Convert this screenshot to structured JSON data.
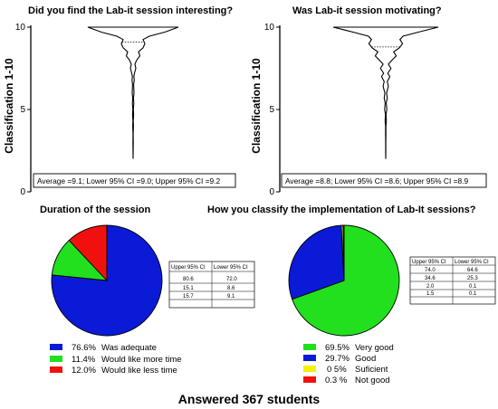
{
  "footer": "Answered 367 students",
  "colors": {
    "blue": "#0a1ad6",
    "green": "#22e01e",
    "red": "#f0110f",
    "yellow": "#f2f200",
    "axis": "#000000"
  },
  "chart_data": [
    {
      "type": "violin",
      "title": "Did you find the Lab-it session interesting?",
      "ylabel": "Classification 1-10",
      "ylim": [
        0,
        10
      ],
      "yticks": [
        "0",
        "5",
        "10"
      ],
      "ytick_values": [
        0,
        5,
        10
      ],
      "summary_text": "Average =9.1; Lower 95% CI =9.0; Upper 95% CI =9.2",
      "average": 9.1,
      "lower_95_ci": 9.0,
      "upper_95_ci": 9.2,
      "range": [
        2,
        10
      ],
      "density_profile": [
        [
          10,
          1.0
        ],
        [
          9.7,
          0.7
        ],
        [
          9.45,
          0.36
        ],
        [
          9.25,
          0.22
        ],
        [
          9,
          0.26
        ],
        [
          8.75,
          0.22
        ],
        [
          8.5,
          0.12
        ],
        [
          8.25,
          0.15
        ],
        [
          8,
          0.08
        ],
        [
          7.75,
          0.04
        ],
        [
          7.5,
          0.06
        ],
        [
          7.2,
          0.03
        ],
        [
          7,
          0.015
        ],
        [
          6.8,
          0.025
        ],
        [
          6.5,
          0.012
        ],
        [
          6,
          0.02
        ],
        [
          5.7,
          0.008
        ],
        [
          5.4,
          0.016
        ],
        [
          5,
          0.006
        ],
        [
          4.7,
          0.012
        ],
        [
          4.3,
          0.004
        ],
        [
          4,
          0.008
        ],
        [
          3.5,
          0.002
        ],
        [
          3,
          0.004
        ],
        [
          2.5,
          0.001
        ],
        [
          2,
          0.0
        ]
      ]
    },
    {
      "type": "violin",
      "title": "Was Lab-it session motivating?",
      "ylabel": "Classification 1-10",
      "ylim": [
        0,
        10
      ],
      "yticks": [
        "0",
        "5",
        "10"
      ],
      "ytick_values": [
        0,
        5,
        10
      ],
      "summary_text": "Average =8.8; Lower 95% CI =8.6; Upper 95% CI =8.9",
      "average": 8.8,
      "lower_95_ci": 8.6,
      "upper_95_ci": 8.9,
      "range": [
        2,
        10
      ],
      "density_profile": [
        [
          10,
          1.0
        ],
        [
          9.7,
          0.62
        ],
        [
          9.45,
          0.33
        ],
        [
          9.25,
          0.27
        ],
        [
          9,
          0.32
        ],
        [
          8.75,
          0.26
        ],
        [
          8.5,
          0.15
        ],
        [
          8.25,
          0.2
        ],
        [
          8,
          0.12
        ],
        [
          7.75,
          0.05
        ],
        [
          7.5,
          0.1
        ],
        [
          7.2,
          0.04
        ],
        [
          7,
          0.08
        ],
        [
          6.7,
          0.03
        ],
        [
          6.4,
          0.05
        ],
        [
          6,
          0.015
        ],
        [
          5.7,
          0.03
        ],
        [
          5.4,
          0.01
        ],
        [
          5,
          0.02
        ],
        [
          4.7,
          0.006
        ],
        [
          4.3,
          0.012
        ],
        [
          4,
          0.004
        ],
        [
          3.5,
          0.003
        ],
        [
          3,
          0.002
        ],
        [
          2.5,
          0.001
        ],
        [
          2,
          0.0
        ]
      ]
    },
    {
      "type": "pie",
      "title": "Duration of the session",
      "slices": [
        {
          "label": "Was adequate",
          "value": 76.6,
          "text": "76.6%",
          "color": "#0a1ad6"
        },
        {
          "label": "Would like more time",
          "value": 11.4,
          "text": "11.4%",
          "color": "#22e01e"
        },
        {
          "label": "Would like less time",
          "value": 12.0,
          "text": "12.0%",
          "color": "#f0110f"
        }
      ],
      "ci_table": {
        "columns": [
          "Upper 95% CI",
          "Lower 95% CI"
        ],
        "rows": [
          [
            "80.6",
            "72.0"
          ],
          [
            "15.1",
            "8.6"
          ],
          [
            "15.7",
            "9.1"
          ]
        ]
      }
    },
    {
      "type": "pie",
      "title": "How you classify the implementation of Lab-It sessions?",
      "slices": [
        {
          "label": "Very good",
          "value": 69.5,
          "text": "69.5%",
          "color": "#22e01e"
        },
        {
          "label": "Good",
          "value": 29.7,
          "text": "29.7%",
          "color": "#0a1ad6"
        },
        {
          "label": "Suficient",
          "value": 0.5,
          "text": "0 5%",
          "color": "#f2f200"
        },
        {
          "label": "Not good",
          "value": 0.3,
          "text": "0.3 %",
          "color": "#f0110f"
        }
      ],
      "ci_table": {
        "columns": [
          "Upper 95% CI",
          "Lower 95% CI"
        ],
        "rows": [
          [
            "74.0",
            "64.6"
          ],
          [
            "34.6",
            "25.3"
          ],
          [
            "2.0",
            "0.1"
          ],
          [
            "1.5",
            "0.1"
          ]
        ]
      }
    }
  ]
}
